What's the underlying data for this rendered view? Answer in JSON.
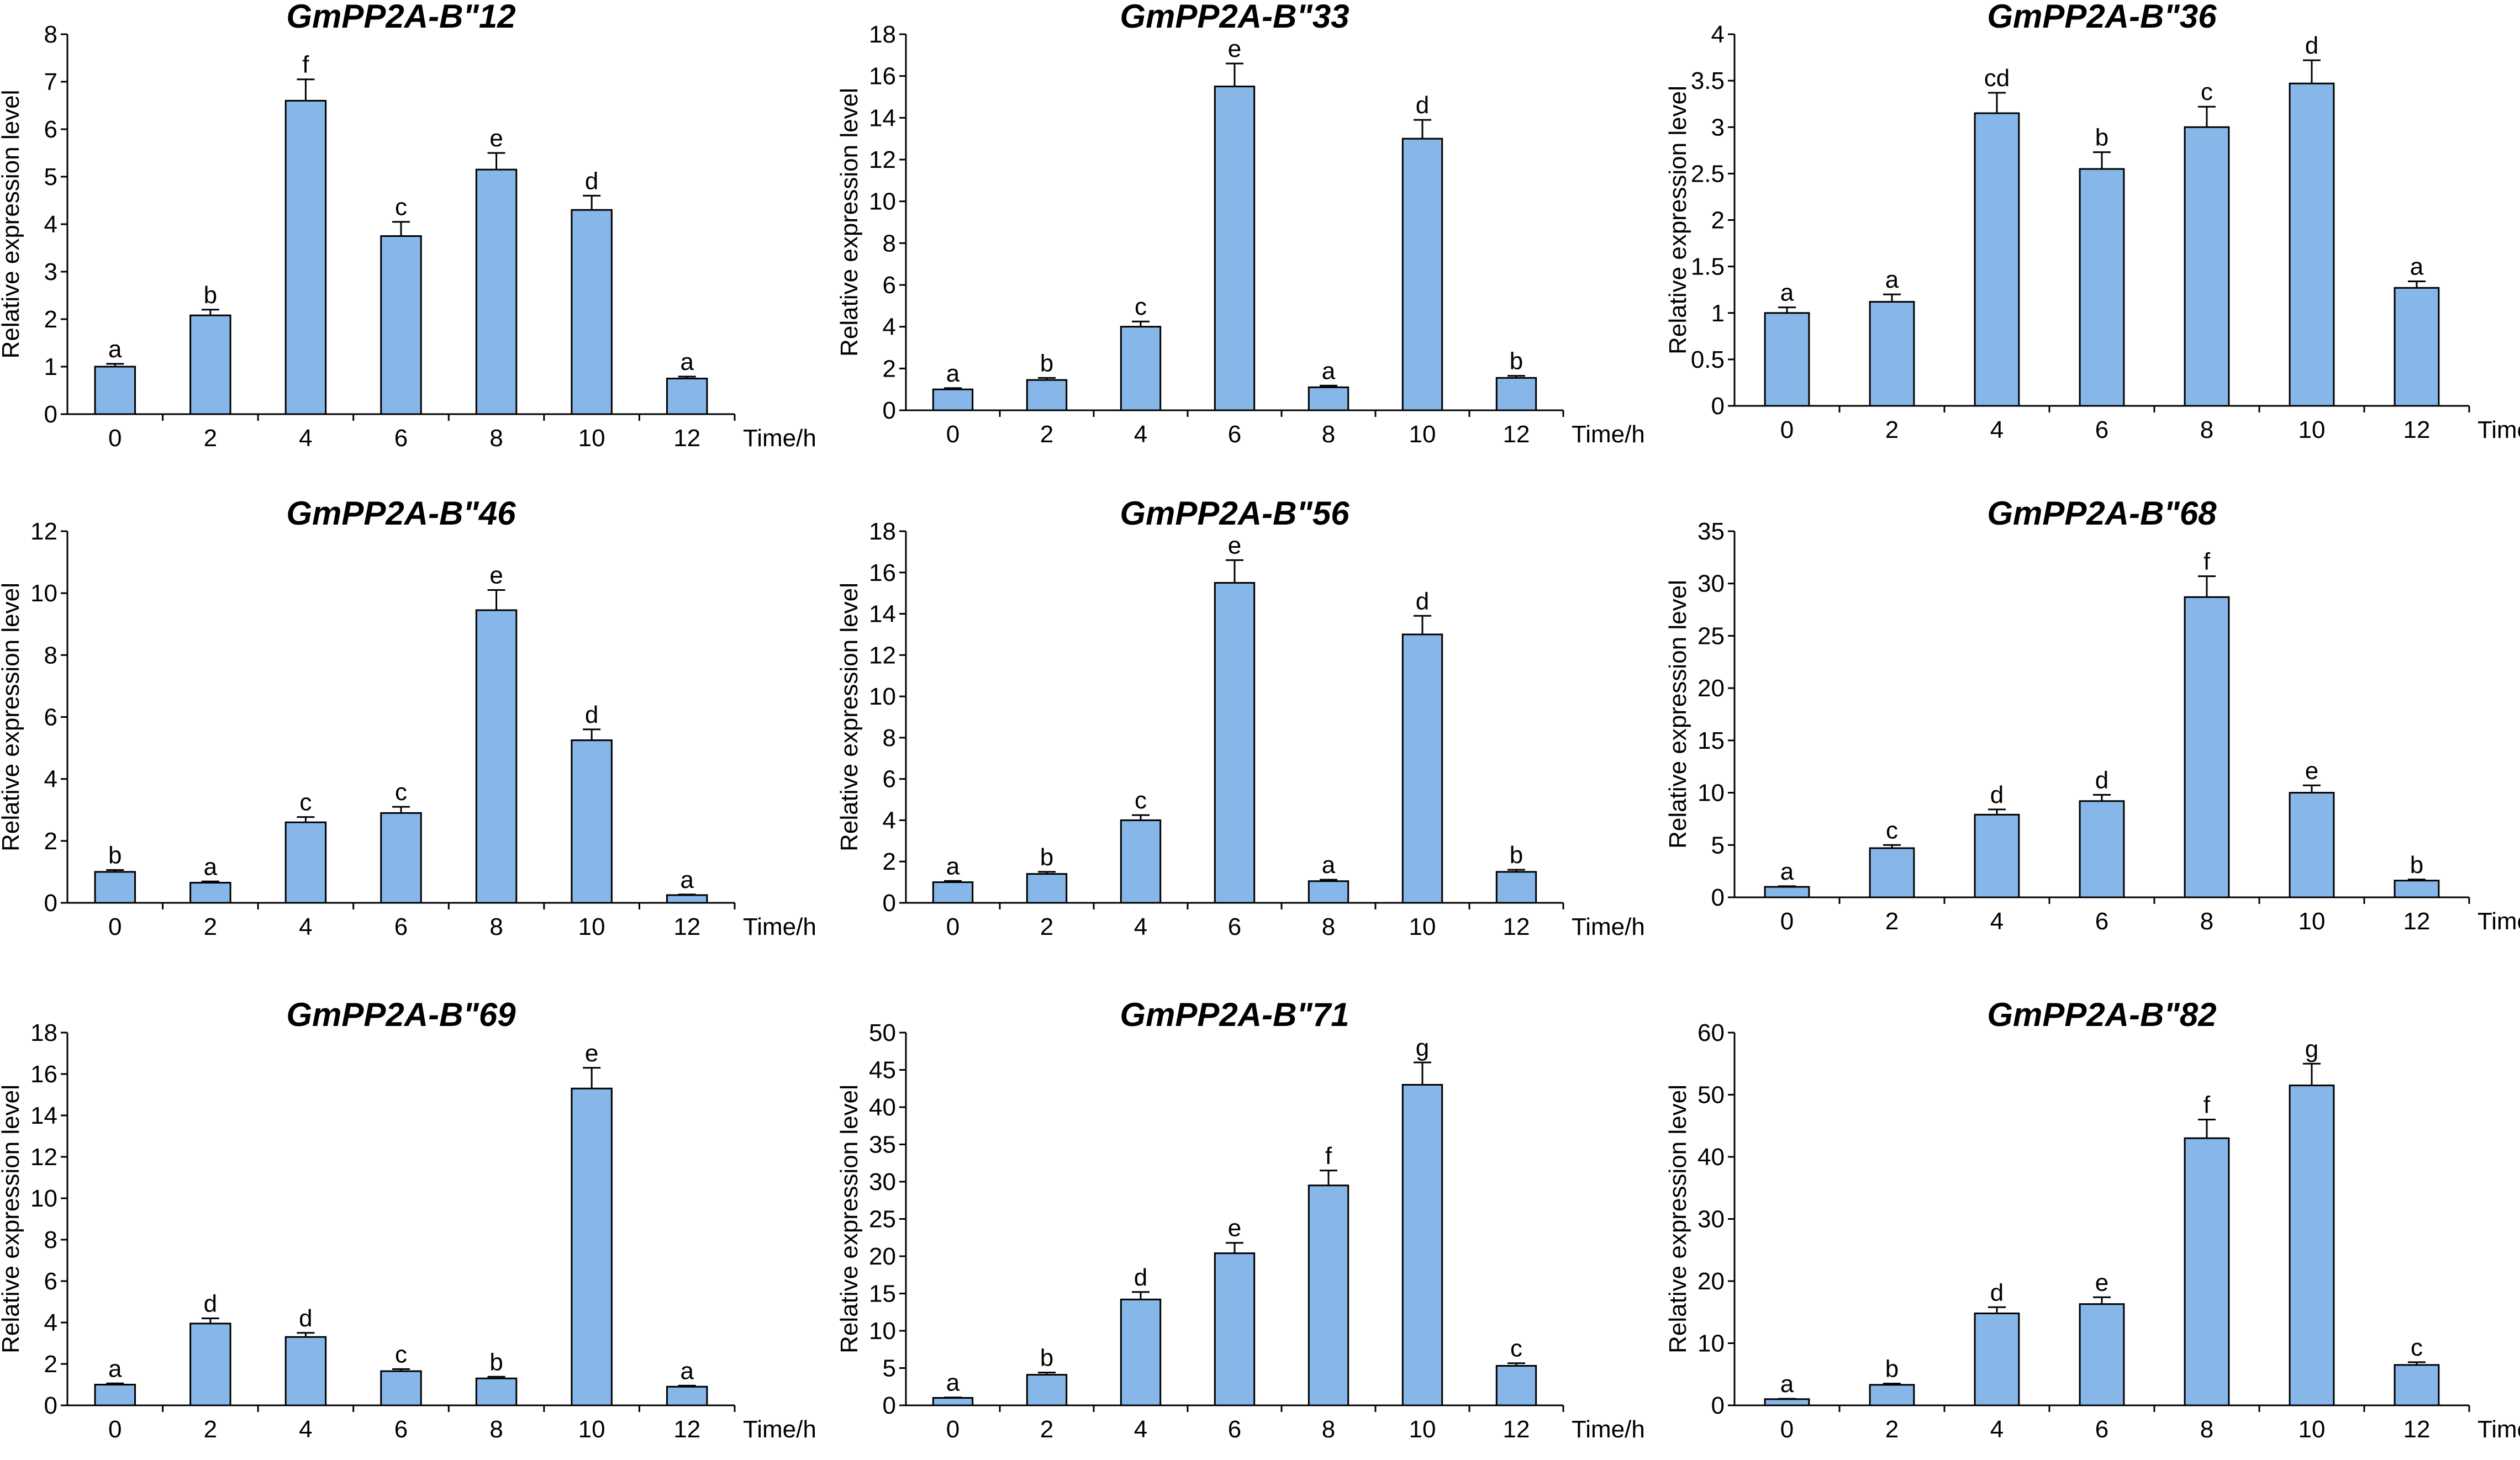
{
  "figure_colors": {
    "bar_fill": "#87B7E8",
    "bar_stroke": "#000000",
    "axis": "#000000"
  },
  "chart_data": [
    {
      "type": "bar",
      "title": "GmPP2A-B\"12",
      "xlabel": "Time/h",
      "ylabel": "Relative expression level",
      "categories": [
        "0",
        "2",
        "4",
        "6",
        "8",
        "10",
        "12"
      ],
      "values": [
        1.0,
        2.08,
        6.6,
        3.75,
        5.15,
        4.3,
        0.75
      ],
      "errors": [
        0.06,
        0.12,
        0.45,
        0.3,
        0.35,
        0.3,
        0.04
      ],
      "letters": [
        "a",
        "b",
        "f",
        "c",
        "e",
        "d",
        "a"
      ],
      "ylim": [
        0,
        8
      ],
      "yticks": [
        "0",
        "1",
        "2",
        "3",
        "4",
        "5",
        "6",
        "7",
        "8"
      ]
    },
    {
      "type": "bar",
      "title": "GmPP2A-B\"33",
      "xlabel": "Time/h",
      "ylabel": "Relative expression level",
      "categories": [
        "0",
        "2",
        "4",
        "6",
        "8",
        "10",
        "12"
      ],
      "values": [
        1.0,
        1.45,
        4.0,
        15.5,
        1.1,
        13.0,
        1.55
      ],
      "errors": [
        0.06,
        0.1,
        0.25,
        1.1,
        0.08,
        0.9,
        0.1
      ],
      "letters": [
        "a",
        "b",
        "c",
        "e",
        "a",
        "d",
        "b"
      ],
      "ylim": [
        0,
        18
      ],
      "yticks": [
        "0",
        "2",
        "4",
        "6",
        "8",
        "10",
        "12",
        "14",
        "16",
        "18"
      ]
    },
    {
      "type": "bar",
      "title": "GmPP2A-B\"36",
      "xlabel": "Time/h",
      "ylabel": "Relative expression level",
      "categories": [
        "0",
        "2",
        "4",
        "6",
        "8",
        "10",
        "12"
      ],
      "values": [
        1.0,
        1.12,
        3.15,
        2.55,
        3.0,
        3.47,
        1.27
      ],
      "errors": [
        0.06,
        0.08,
        0.22,
        0.18,
        0.22,
        0.25,
        0.07
      ],
      "letters": [
        "a",
        "a",
        "cd",
        "b",
        "c",
        "d",
        "a"
      ],
      "ylim": [
        0,
        4
      ],
      "yticks": [
        "0",
        "0.5",
        "1",
        "1.5",
        "2",
        "2.5",
        "3",
        "3.5",
        "4"
      ]
    },
    {
      "type": "bar",
      "title": "GmPP2A-B\"46",
      "xlabel": "Time/h",
      "ylabel": "Relative expression level",
      "categories": [
        "0",
        "2",
        "4",
        "6",
        "8",
        "10",
        "12"
      ],
      "values": [
        1.0,
        0.65,
        2.6,
        2.9,
        9.45,
        5.25,
        0.25
      ],
      "errors": [
        0.06,
        0.04,
        0.17,
        0.2,
        0.65,
        0.35,
        0.02
      ],
      "letters": [
        "b",
        "a",
        "c",
        "c",
        "e",
        "d",
        "a"
      ],
      "ylim": [
        0,
        12
      ],
      "yticks": [
        "0",
        "2",
        "4",
        "6",
        "8",
        "10",
        "12"
      ]
    },
    {
      "type": "bar",
      "title": "GmPP2A-B\"56",
      "xlabel": "Time/h",
      "ylabel": "Relative expression level",
      "categories": [
        "0",
        "2",
        "4",
        "6",
        "8",
        "10",
        "12"
      ],
      "values": [
        1.0,
        1.4,
        4.0,
        15.5,
        1.05,
        13.0,
        1.5
      ],
      "errors": [
        0.06,
        0.1,
        0.25,
        1.1,
        0.07,
        0.9,
        0.1
      ],
      "letters": [
        "a",
        "b",
        "c",
        "e",
        "a",
        "d",
        "b"
      ],
      "ylim": [
        0,
        18
      ],
      "yticks": [
        "0",
        "2",
        "4",
        "6",
        "8",
        "10",
        "12",
        "14",
        "16",
        "18"
      ]
    },
    {
      "type": "bar",
      "title": "GmPP2A-B\"68",
      "xlabel": "Time/h",
      "ylabel": "Relative expression level",
      "categories": [
        "0",
        "2",
        "4",
        "6",
        "8",
        "10",
        "12"
      ],
      "values": [
        1.0,
        4.7,
        7.9,
        9.2,
        28.7,
        10.0,
        1.6
      ],
      "errors": [
        0.06,
        0.3,
        0.5,
        0.6,
        2.0,
        0.7,
        0.1
      ],
      "letters": [
        "a",
        "c",
        "d",
        "d",
        "f",
        "e",
        "b"
      ],
      "ylim": [
        0,
        35
      ],
      "yticks": [
        "0",
        "5",
        "10",
        "15",
        "20",
        "25",
        "30",
        "35"
      ]
    },
    {
      "type": "bar",
      "title": "GmPP2A-B\"69",
      "xlabel": "Time/h",
      "ylabel": "Relative expression level",
      "categories": [
        "0",
        "2",
        "4",
        "6",
        "8",
        "10",
        "12"
      ],
      "values": [
        1.0,
        3.95,
        3.3,
        1.65,
        1.3,
        15.3,
        0.9
      ],
      "errors": [
        0.06,
        0.25,
        0.2,
        0.1,
        0.08,
        1.0,
        0.05
      ],
      "letters": [
        "a",
        "d",
        "d",
        "c",
        "b",
        "e",
        "a"
      ],
      "ylim": [
        0,
        18
      ],
      "yticks": [
        "0",
        "2",
        "4",
        "6",
        "8",
        "10",
        "12",
        "14",
        "16",
        "18"
      ]
    },
    {
      "type": "bar",
      "title": "GmPP2A-B\"71",
      "xlabel": "Time/h",
      "ylabel": "Relative expression level",
      "categories": [
        "0",
        "2",
        "4",
        "6",
        "8",
        "10",
        "12"
      ],
      "values": [
        1.0,
        4.1,
        14.2,
        20.4,
        29.5,
        43.0,
        5.3
      ],
      "errors": [
        0.06,
        0.3,
        1.0,
        1.4,
        2.0,
        3.0,
        0.35
      ],
      "letters": [
        "a",
        "b",
        "d",
        "e",
        "f",
        "g",
        "c"
      ],
      "ylim": [
        0,
        50
      ],
      "yticks": [
        "0",
        "5",
        "10",
        "15",
        "20",
        "25",
        "30",
        "35",
        "40",
        "45",
        "50"
      ]
    },
    {
      "type": "bar",
      "title": "GmPP2A-B\"82",
      "xlabel": "Time/h",
      "ylabel": "Relative expression level",
      "categories": [
        "0",
        "2",
        "4",
        "6",
        "8",
        "10",
        "12"
      ],
      "values": [
        1.0,
        3.3,
        14.8,
        16.3,
        43.0,
        51.5,
        6.5
      ],
      "errors": [
        0.06,
        0.2,
        1.0,
        1.1,
        3.0,
        3.5,
        0.45
      ],
      "letters": [
        "a",
        "b",
        "d",
        "e",
        "f",
        "g",
        "c"
      ],
      "ylim": [
        0,
        60
      ],
      "yticks": [
        "0",
        "10",
        "20",
        "30",
        "40",
        "50",
        "60"
      ]
    }
  ]
}
